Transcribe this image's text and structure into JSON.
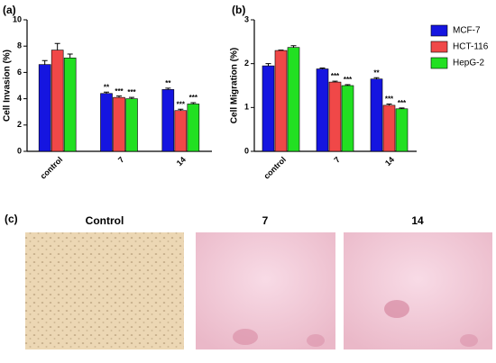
{
  "chart_data": [
    {
      "type": "bar",
      "panel": "(a)",
      "y_label": "Cell Invasion (%)",
      "categories": [
        "control",
        "7",
        "14"
      ],
      "ylim": [
        0,
        10
      ],
      "yticks": [
        0,
        2,
        4,
        6,
        8,
        10
      ],
      "series": [
        {
          "values": [
            6.6,
            4.4,
            4.7
          ],
          "errors": [
            0.3,
            0.1,
            0.1
          ],
          "annotations": [
            null,
            "**",
            "**"
          ]
        },
        {
          "values": [
            7.7,
            4.1,
            3.1
          ],
          "errors": [
            0.5,
            0.1,
            0.1
          ],
          "annotations": [
            null,
            "***",
            "***"
          ]
        },
        {
          "values": [
            7.1,
            4.0,
            3.6
          ],
          "errors": [
            0.3,
            0.1,
            0.1
          ],
          "annotations": [
            null,
            "***",
            "***"
          ]
        }
      ]
    },
    {
      "type": "bar",
      "panel": "(b)",
      "y_label": "Cell Migration (%)",
      "categories": [
        "control",
        "7",
        "14"
      ],
      "ylim": [
        0,
        3
      ],
      "yticks": [
        0,
        1,
        2,
        3
      ],
      "series": [
        {
          "values": [
            1.95,
            1.88,
            1.65
          ],
          "errors": [
            0.05,
            0.02,
            0.03
          ],
          "annotations": [
            null,
            null,
            "**"
          ]
        },
        {
          "values": [
            2.3,
            1.58,
            1.05
          ],
          "errors": [
            0.01,
            0.02,
            0.03
          ],
          "annotations": [
            null,
            "***",
            "***"
          ]
        },
        {
          "values": [
            2.37,
            1.5,
            0.97
          ],
          "errors": [
            0.04,
            0.02,
            0.02
          ],
          "annotations": [
            null,
            "***",
            "***"
          ]
        }
      ]
    }
  ],
  "legend": [
    {
      "name": "MCF-7",
      "color": "#1515e0"
    },
    {
      "name": "HCT-116",
      "color": "#f04848"
    },
    {
      "name": "HepG-2",
      "color": "#22e022"
    }
  ],
  "images": {
    "panel": "(c)",
    "titles": [
      "Control",
      "7",
      "14"
    ]
  }
}
